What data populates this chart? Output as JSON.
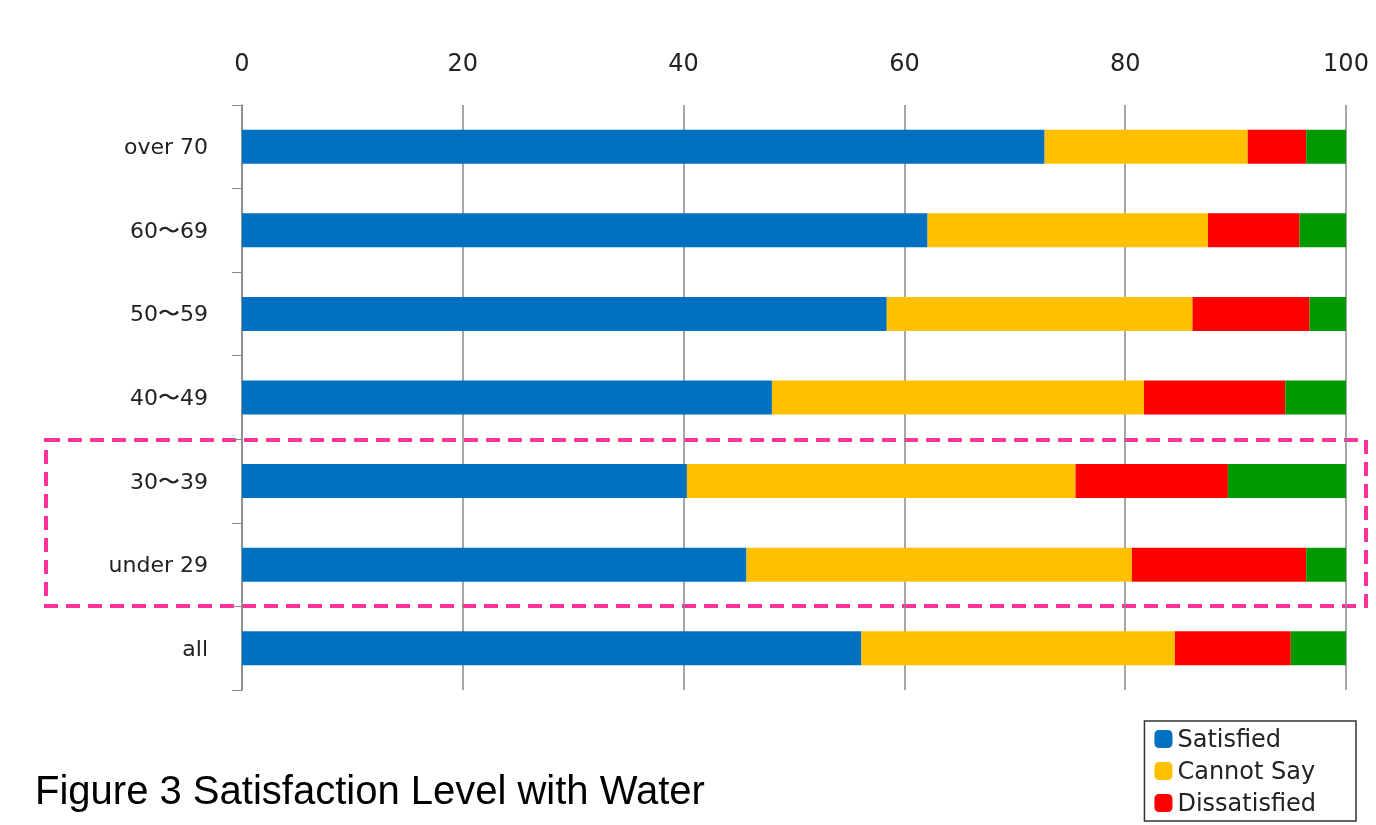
{
  "chart_data": {
    "type": "bar",
    "title": "Figure 3 Satisfaction Level with Water",
    "orientation": "horizontal",
    "stacked": true,
    "categories": [
      "over 70",
      "60〜69",
      "50〜59",
      "40〜49",
      "30〜39",
      "under 29",
      "all"
    ],
    "series": [
      {
        "name": "Satisfied",
        "color": "#0070c0",
        "values": [
          72.7,
          62.1,
          58.4,
          48.0,
          40.3,
          45.7,
          56.1
        ]
      },
      {
        "name": "Cannot Say",
        "color": "#ffc000",
        "values": [
          18.4,
          25.4,
          27.7,
          33.7,
          35.2,
          34.9,
          28.4
        ]
      },
      {
        "name": "Dissatisfied",
        "color": "#ff0000",
        "values": [
          5.3,
          8.3,
          10.6,
          12.8,
          13.8,
          15.8,
          10.5
        ]
      },
      {
        "color": "#009900",
        "values": [
          3.6,
          4.2,
          3.3,
          5.5,
          10.7,
          3.6,
          5.0
        ]
      }
    ],
    "xlim": [
      0,
      100
    ],
    "xticks": [
      0,
      20,
      40,
      60,
      80,
      100
    ],
    "grid": "x",
    "legend": "bottom right"
  }
}
